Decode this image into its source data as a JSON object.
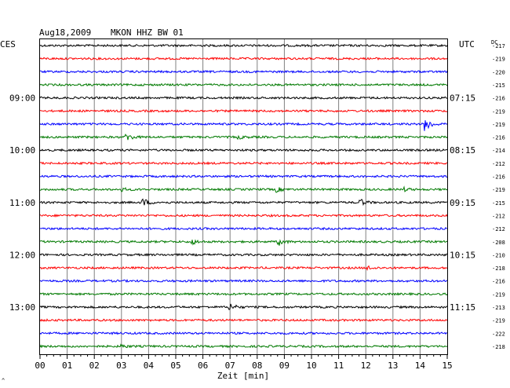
{
  "header": {
    "date": "Aug18,2009",
    "station": "MKON HHZ BW 01"
  },
  "chart_data": {
    "type": "line",
    "title": "Aug18,2009  MKON HHZ BW 01",
    "left_tz": "CES",
    "right_tz": "UTC",
    "offset_label": "DC",
    "xlabel": "Zeit [min]",
    "xlim": [
      0,
      15
    ],
    "x_ticks": [
      "00",
      "01",
      "02",
      "03",
      "04",
      "05",
      "06",
      "07",
      "08",
      "09",
      "10",
      "11",
      "12",
      "13",
      "14",
      "15"
    ],
    "traces": 24,
    "colors": [
      "#000000",
      "#ff0000",
      "#0000ff",
      "#007a00"
    ],
    "left_labels": [
      {
        "trace": 4,
        "text": "09:00"
      },
      {
        "trace": 8,
        "text": "10:00"
      },
      {
        "trace": 12,
        "text": "11:00"
      },
      {
        "trace": 16,
        "text": "12:00"
      },
      {
        "trace": 20,
        "text": "13:00"
      }
    ],
    "right_labels": [
      {
        "trace": 4,
        "text": "07:15"
      },
      {
        "trace": 8,
        "text": "08:15"
      },
      {
        "trace": 12,
        "text": "09:15"
      },
      {
        "trace": 16,
        "text": "10:15"
      },
      {
        "trace": 20,
        "text": "11:15"
      }
    ],
    "offsets": [
      -217,
      -219,
      -220,
      -215,
      -216,
      -219,
      -219,
      -216,
      -214,
      -212,
      -216,
      -219,
      -215,
      -212,
      -212,
      -208,
      -210,
      -218,
      -216,
      -219,
      -213,
      -219,
      -222,
      -218
    ],
    "events": [
      {
        "trace": 6,
        "minute": 14.2,
        "amp": 10
      },
      {
        "trace": 7,
        "minute": 3.2,
        "amp": 5
      },
      {
        "trace": 7,
        "minute": 7.3,
        "amp": 2
      },
      {
        "trace": 11,
        "minute": 3.0,
        "amp": 2
      },
      {
        "trace": 11,
        "minute": 8.7,
        "amp": 3
      },
      {
        "trace": 11,
        "minute": 13.4,
        "amp": 2
      },
      {
        "trace": 12,
        "minute": 3.8,
        "amp": 5
      },
      {
        "trace": 12,
        "minute": 11.8,
        "amp": 4
      },
      {
        "trace": 15,
        "minute": 5.6,
        "amp": 3
      },
      {
        "trace": 15,
        "minute": 8.8,
        "amp": 4
      },
      {
        "trace": 17,
        "minute": 12.1,
        "amp": 2
      },
      {
        "trace": 20,
        "minute": 7.0,
        "amp": 5
      },
      {
        "trace": 23,
        "minute": 3.0,
        "amp": 2
      }
    ]
  }
}
